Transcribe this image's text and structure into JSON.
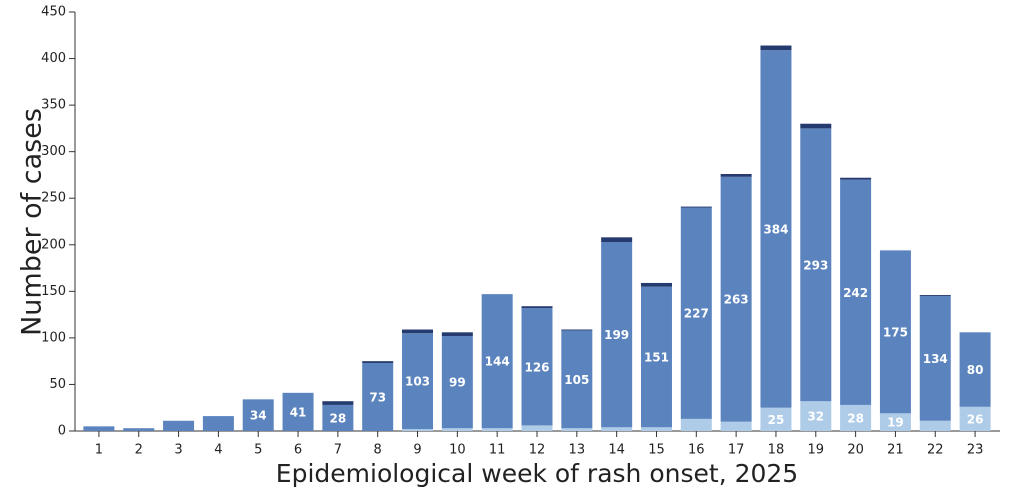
{
  "chart_data": {
    "type": "stacked_bar",
    "xlabel": "Epidemiological week of rash onset, 2025",
    "ylabel": "Number of cases",
    "categories": [
      "1",
      "2",
      "3",
      "4",
      "5",
      "6",
      "7",
      "8",
      "9",
      "10",
      "11",
      "12",
      "13",
      "14",
      "15",
      "16",
      "17",
      "18",
      "19",
      "20",
      "21",
      "22",
      "23"
    ],
    "series": [
      {
        "color": "#aecbe8",
        "values": [
          0,
          0,
          0,
          0,
          0,
          0,
          0,
          0,
          2,
          3,
          3,
          6,
          3,
          4,
          4,
          13,
          10,
          25,
          32,
          28,
          19,
          11,
          26
        ]
      },
      {
        "color": "#5b84bf",
        "values": [
          5,
          3,
          11,
          16,
          34,
          41,
          28,
          73,
          103,
          99,
          144,
          126,
          105,
          199,
          151,
          227,
          263,
          384,
          293,
          242,
          175,
          134,
          80
        ]
      },
      {
        "color": "#253a6e",
        "values": [
          0,
          0,
          0,
          0,
          0,
          0,
          4,
          2,
          4,
          4,
          0,
          2,
          1,
          5,
          4,
          1,
          3,
          5,
          5,
          2,
          0,
          1,
          0
        ]
      }
    ],
    "ylim": [
      0,
      450
    ],
    "yticks": [
      0,
      50,
      100,
      150,
      200,
      250,
      300,
      350,
      400,
      450
    ]
  }
}
